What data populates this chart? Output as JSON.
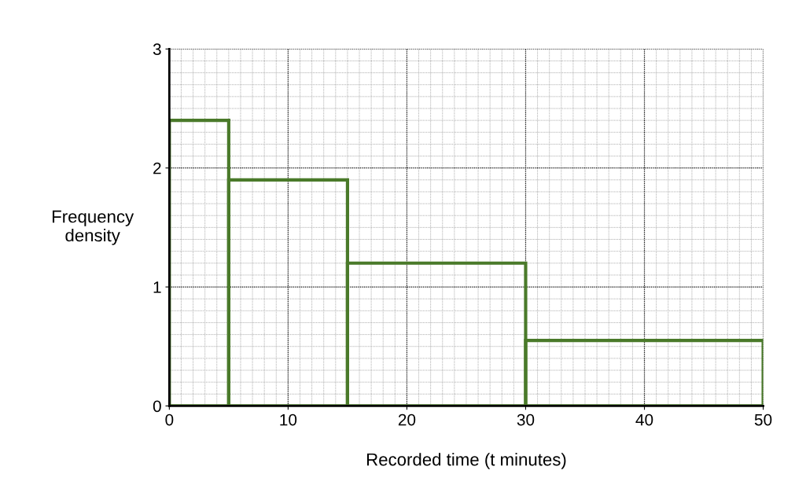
{
  "chart_data": {
    "type": "histogram",
    "xlabel": "Recorded time (t minutes)",
    "ylabel": "Frequency\ndensity",
    "bins": [
      0,
      5,
      15,
      30,
      50
    ],
    "values": [
      2.4,
      1.9,
      1.2,
      0.55
    ],
    "color": "#4a7a2a",
    "xlim": [
      0,
      50
    ],
    "ylim": [
      0,
      3
    ],
    "xticks": [
      0,
      10,
      20,
      30,
      40,
      50
    ],
    "yticks": [
      0,
      1,
      2,
      3
    ],
    "grid": true
  }
}
